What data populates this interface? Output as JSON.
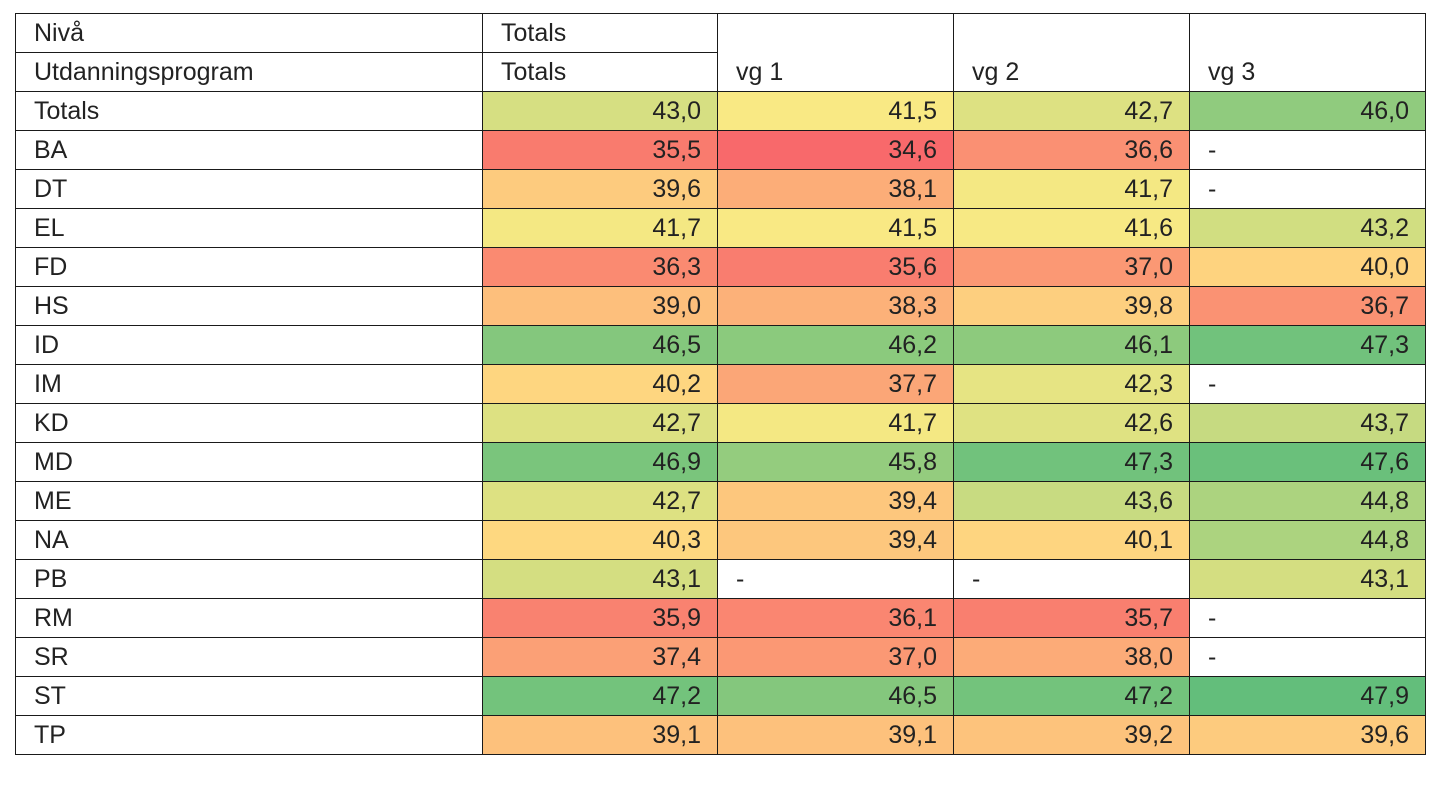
{
  "chart_data": {
    "type": "heatmap",
    "header": {
      "row_label_1": "Nivå",
      "row_label_2": "Utdanningsprogram",
      "columns": [
        {
          "top": "Totals",
          "bottom": "Totals"
        },
        {
          "top": "",
          "bottom": "vg 1"
        },
        {
          "top": "",
          "bottom": "vg 2"
        },
        {
          "top": "",
          "bottom": "vg 3"
        }
      ]
    },
    "color_scale": {
      "low": "#f8696b",
      "mid": "#ffeb84",
      "high": "#63be7b",
      "missing": "#ffffff"
    },
    "missing_display": "-",
    "rows": [
      {
        "label": "Totals",
        "values": [
          "43,0",
          "41,5",
          "42,7",
          "46,0"
        ]
      },
      {
        "label": "BA",
        "values": [
          "35,5",
          "34,6",
          "36,6",
          "-"
        ]
      },
      {
        "label": "DT",
        "values": [
          "39,6",
          "38,1",
          "41,7",
          "-"
        ]
      },
      {
        "label": "EL",
        "values": [
          "41,7",
          "41,5",
          "41,6",
          "43,2"
        ]
      },
      {
        "label": "FD",
        "values": [
          "36,3",
          "35,6",
          "37,0",
          "40,0"
        ]
      },
      {
        "label": "HS",
        "values": [
          "39,0",
          "38,3",
          "39,8",
          "36,7"
        ]
      },
      {
        "label": "ID",
        "values": [
          "46,5",
          "46,2",
          "46,1",
          "47,3"
        ]
      },
      {
        "label": "IM",
        "values": [
          "40,2",
          "37,7",
          "42,3",
          "-"
        ]
      },
      {
        "label": "KD",
        "values": [
          "42,7",
          "41,7",
          "42,6",
          "43,7"
        ]
      },
      {
        "label": "MD",
        "values": [
          "46,9",
          "45,8",
          "47,3",
          "47,6"
        ]
      },
      {
        "label": "ME",
        "values": [
          "42,7",
          "39,4",
          "43,6",
          "44,8"
        ]
      },
      {
        "label": "NA",
        "values": [
          "40,3",
          "39,4",
          "40,1",
          "44,8"
        ]
      },
      {
        "label": "PB",
        "values": [
          "43,1",
          "-",
          "-",
          "43,1"
        ]
      },
      {
        "label": "RM",
        "values": [
          "35,9",
          "36,1",
          "35,7",
          "-"
        ]
      },
      {
        "label": "SR",
        "values": [
          "37,4",
          "37,0",
          "38,0",
          "-"
        ]
      },
      {
        "label": "ST",
        "values": [
          "47,2",
          "46,5",
          "47,2",
          "47,9"
        ]
      },
      {
        "label": "TP",
        "values": [
          "39,1",
          "39,1",
          "39,2",
          "39,6"
        ]
      }
    ]
  }
}
